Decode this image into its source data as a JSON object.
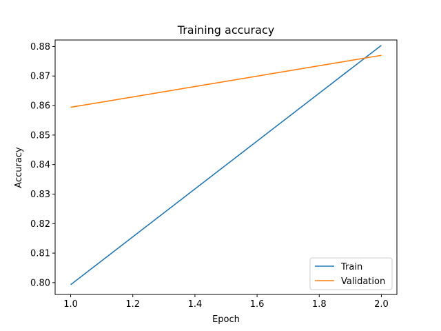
{
  "chart_data": {
    "type": "line",
    "title": "Training accuracy",
    "xlabel": "Epoch",
    "ylabel": "Accuracy",
    "xlim": [
      0.95,
      2.05
    ],
    "ylim": [
      0.796,
      0.8822
    ],
    "x_ticks": [
      1.0,
      1.2,
      1.4,
      1.6,
      1.8,
      2.0
    ],
    "x_tick_labels": [
      "1.0",
      "1.2",
      "1.4",
      "1.6",
      "1.8",
      "2.0"
    ],
    "y_ticks": [
      0.8,
      0.81,
      0.82,
      0.83,
      0.84,
      0.85,
      0.86,
      0.87,
      0.88
    ],
    "y_tick_labels": [
      "0.80",
      "0.81",
      "0.82",
      "0.83",
      "0.84",
      "0.85",
      "0.86",
      "0.87",
      "0.88"
    ],
    "grid": false,
    "legend_position": "lower right",
    "series": [
      {
        "name": "Train",
        "color": "#1f77b4",
        "x": [
          1,
          2
        ],
        "y": [
          0.7993,
          0.8804
        ]
      },
      {
        "name": "Validation",
        "color": "#ff7f0e",
        "x": [
          1,
          2
        ],
        "y": [
          0.8594,
          0.877
        ]
      }
    ]
  }
}
